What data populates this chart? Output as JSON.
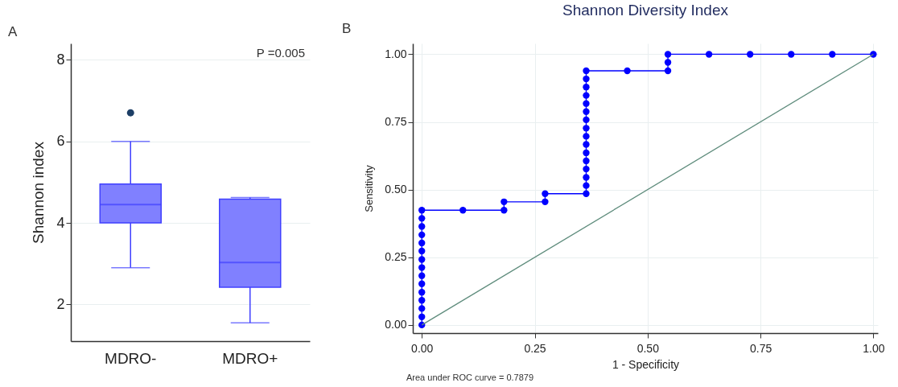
{
  "chart_data": [
    {
      "type": "box",
      "categories": [
        "MDRO-",
        "MDRO+"
      ],
      "ylabel": "Shannon index",
      "ylim": [
        1.1,
        8.4
      ],
      "yticks": [
        2,
        4,
        6,
        8
      ],
      "grid": "y",
      "color": "#8080ff",
      "annotations": [
        "A",
        "P =0.005"
      ],
      "boxes": [
        {
          "low": 2.9,
          "q1": 4.0,
          "median": 4.45,
          "q3": 4.95,
          "high": 6.0,
          "outliers": [
            6.7
          ]
        },
        {
          "low": 1.55,
          "q1": 2.42,
          "median": 3.03,
          "q3": 4.58,
          "high": 4.62
        }
      ]
    },
    {
      "type": "line",
      "title": "Shannon Diversity Index",
      "xlabel": "1 - Specificity",
      "ylabel": "Sensitivity",
      "xlim": [
        -0.02,
        1.01
      ],
      "ylim": [
        -0.03,
        1.04
      ],
      "xticks": [
        {
          "value": 0,
          "label": "0.00"
        },
        {
          "value": 0.25,
          "label": "0.25"
        },
        {
          "value": 0.5,
          "label": "0.50"
        },
        {
          "value": 0.75,
          "label": "0.75"
        },
        {
          "value": 1,
          "label": "1.00"
        }
      ],
      "yticks": [
        {
          "value": 0,
          "label": "0.00"
        },
        {
          "value": 0.25,
          "label": "0.25"
        },
        {
          "value": 0.5,
          "label": "0.50"
        },
        {
          "value": 0.75,
          "label": "0.75"
        },
        {
          "value": 1,
          "label": "1.00"
        }
      ],
      "grid": true,
      "marker": "circle",
      "annotations": [
        "B",
        "Area under ROC curve = 0.7879"
      ],
      "series": [
        {
          "color": "#0000ff",
          "x": [
            0,
            0,
            0,
            0,
            0,
            0,
            0,
            0,
            0,
            0,
            0,
            0,
            0,
            0,
            0,
            0.091,
            0.182,
            0.182,
            0.273,
            0.273,
            0.364,
            0.364,
            0.364,
            0.364,
            0.364,
            0.364,
            0.364,
            0.364,
            0.364,
            0.364,
            0.364,
            0.364,
            0.364,
            0.364,
            0.364,
            0.364,
            0.455,
            0.545,
            0.545,
            0.545,
            0.636,
            0.727,
            0.818,
            0.909,
            1
          ],
          "values": [
            0,
            0.03,
            0.061,
            0.091,
            0.121,
            0.152,
            0.182,
            0.212,
            0.242,
            0.273,
            0.303,
            0.333,
            0.364,
            0.394,
            0.424,
            0.424,
            0.424,
            0.455,
            0.455,
            0.485,
            0.485,
            0.515,
            0.545,
            0.576,
            0.606,
            0.636,
            0.667,
            0.697,
            0.727,
            0.758,
            0.788,
            0.818,
            0.848,
            0.879,
            0.909,
            0.939,
            0.939,
            0.939,
            0.97,
            1,
            1,
            1,
            1,
            1,
            1
          ]
        },
        {
          "color": "#5e8c7c",
          "marker": "none",
          "x": [
            0,
            1
          ],
          "values": [
            0,
            1
          ]
        }
      ]
    }
  ]
}
